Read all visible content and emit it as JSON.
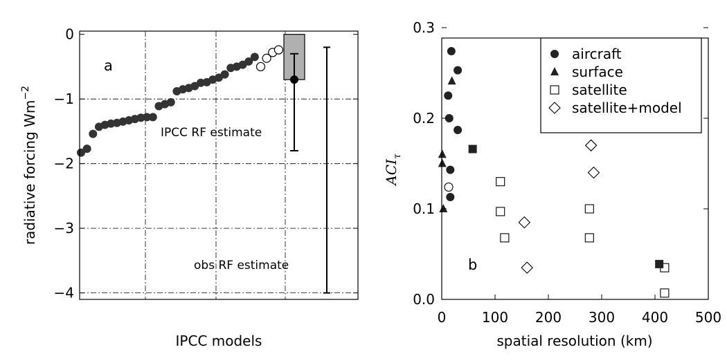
{
  "chart_data": [
    {
      "panel": "a",
      "type": "scatter",
      "xlabel": "IPCC models",
      "ylabel": "radiative forcing Wm",
      "ylabel_superscript": "−2",
      "ylim": [
        -4.1,
        0.05
      ],
      "yticks": [
        0,
        -1,
        -2,
        -3,
        -4
      ],
      "ytick_labels": [
        "0",
        "−1",
        "−2",
        "−3",
        "−4"
      ],
      "grid": true,
      "series": [
        {
          "marker": "filled-circle",
          "x": [
            1,
            2,
            3,
            4,
            5,
            6,
            7,
            8,
            9,
            10,
            11,
            12,
            13,
            14,
            15,
            16,
            17,
            18,
            19,
            20,
            21,
            22,
            23,
            24,
            25,
            26,
            27,
            28,
            29,
            30
          ],
          "values": [
            -1.83,
            -1.77,
            -1.54,
            -1.43,
            -1.4,
            -1.38,
            -1.37,
            -1.35,
            -1.33,
            -1.31,
            -1.29,
            -1.28,
            -1.28,
            -1.11,
            -1.08,
            -1.05,
            -0.88,
            -0.85,
            -0.83,
            -0.8,
            -0.75,
            -0.74,
            -0.7,
            -0.67,
            -0.62,
            -0.52,
            -0.5,
            -0.47,
            -0.42,
            -0.35
          ]
        },
        {
          "marker": "open-circle",
          "x": [
            31,
            32,
            33,
            34
          ],
          "values": [
            -0.5,
            -0.37,
            -0.28,
            -0.24
          ]
        }
      ],
      "ipcc_estimate": {
        "label": "IPCC RF estimate",
        "box": [
          -0.7,
          0.0
        ],
        "central": -0.7,
        "whisker": [
          -1.8,
          -0.3
        ]
      },
      "obs_estimate": {
        "label": "obs RF estimate",
        "range": [
          -4.0,
          -0.2
        ]
      }
    },
    {
      "panel": "b",
      "type": "scatter",
      "xlabel": "spatial resolution (km)",
      "ylabel": "ACI",
      "ylabel_subscript": "τ",
      "xlim": [
        0,
        500
      ],
      "ylim": [
        0,
        0.3
      ],
      "xticks": [
        0,
        100,
        200,
        300,
        400,
        500
      ],
      "yticks": [
        0.0,
        0.1,
        0.2,
        0.3
      ],
      "ytick_labels": [
        "0.0",
        "0.1",
        "0.2",
        "0.3"
      ],
      "legend_position": "top-right",
      "series": [
        {
          "name": "aircraft",
          "marker": "filled-circle",
          "points": [
            [
              12,
              0.225
            ],
            [
              14,
              0.2
            ],
            [
              18,
              0.274
            ],
            [
              30,
              0.253
            ],
            [
              30,
              0.187
            ],
            [
              16,
              0.143
            ],
            [
              16,
              0.113
            ]
          ]
        },
        {
          "name": "surface",
          "marker": "filled-triangle",
          "points": [
            [
              19,
              0.241
            ],
            [
              1,
              0.16
            ],
            [
              1,
              0.15
            ],
            [
              3,
              0.1
            ]
          ]
        },
        {
          "name": "satellite",
          "marker": "open-square",
          "points": [
            [
              110,
              0.13
            ],
            [
              110,
              0.097
            ],
            [
              118,
              0.068
            ],
            [
              277,
              0.1
            ],
            [
              277,
              0.068
            ],
            [
              418,
              0.035
            ],
            [
              418,
              0.007
            ]
          ]
        },
        {
          "name": "satellite+model",
          "marker": "open-diamond",
          "points": [
            [
              155,
              0.085
            ],
            [
              160,
              0.035
            ],
            [
              280,
              0.17
            ],
            [
              285,
              0.14
            ]
          ]
        }
      ],
      "extra_points": [
        {
          "marker": "open-circle",
          "x": 13,
          "y": 0.124
        },
        {
          "marker": "filled-square",
          "x": 58,
          "y": 0.166
        },
        {
          "marker": "filled-square",
          "x": 408,
          "y": 0.039
        }
      ]
    }
  ]
}
